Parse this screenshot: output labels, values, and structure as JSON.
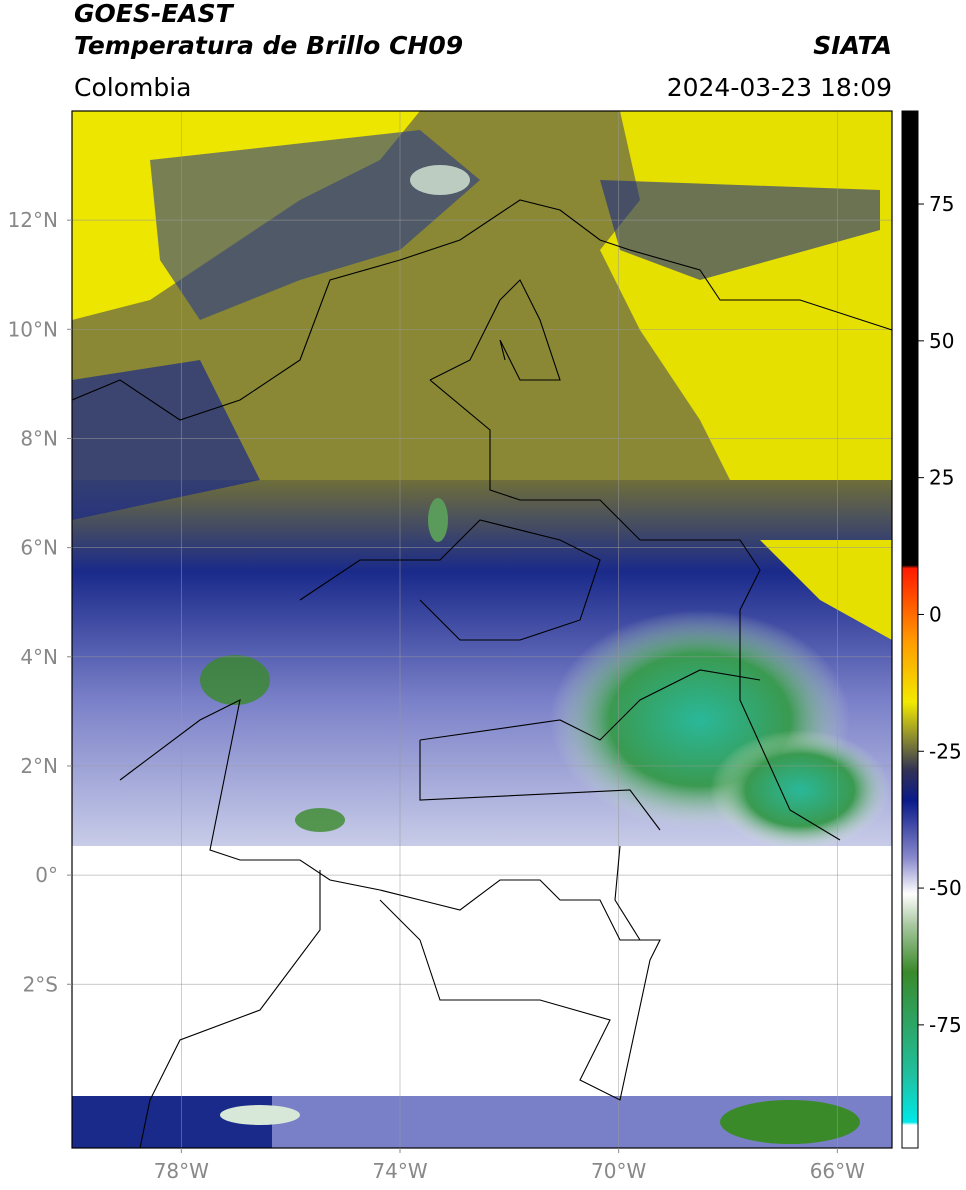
{
  "header": {
    "title": "GOES-EAST",
    "subtitle": "Temperatura de Brillo CH09",
    "source": "SIATA",
    "region": "Colombia",
    "datetime": "2024-03-23 18:09"
  },
  "map": {
    "lat_range": [
      -5,
      14
    ],
    "lon_range": [
      -80,
      -65
    ],
    "lat_ticks": [
      {
        "value": 12,
        "label": "12°N"
      },
      {
        "value": 10,
        "label": "10°N"
      },
      {
        "value": 8,
        "label": "8°N"
      },
      {
        "value": 6,
        "label": "6°N"
      },
      {
        "value": 4,
        "label": "4°N"
      },
      {
        "value": 2,
        "label": "2°N"
      },
      {
        "value": 0,
        "label": "0°"
      },
      {
        "value": -2,
        "label": "2°S"
      }
    ],
    "lon_ticks": [
      {
        "value": -78,
        "label": "78°W"
      },
      {
        "value": -74,
        "label": "74°W"
      },
      {
        "value": -70,
        "label": "70°W"
      },
      {
        "value": -66,
        "label": "66°W"
      }
    ]
  },
  "colorbar": {
    "range": [
      -97.5,
      92
    ],
    "ticks": [
      75,
      50,
      25,
      0,
      -25,
      -50,
      -75
    ]
  }
}
